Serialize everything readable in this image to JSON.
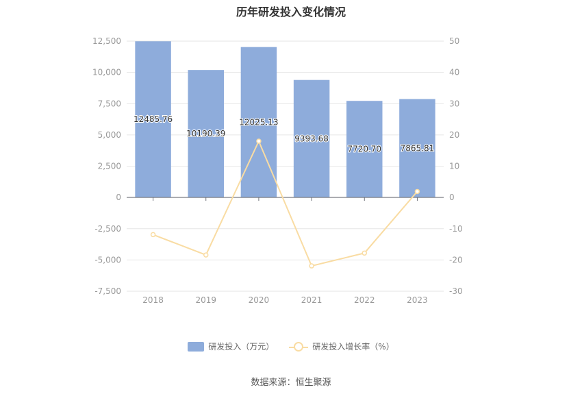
{
  "title": "历年研发投入变化情况",
  "source": "数据来源：恒生聚源",
  "colors": {
    "bar": "#8eacdb",
    "line": "#f9dca3",
    "grid": "#e6e6e6"
  },
  "chart_data": {
    "type": "bar",
    "categories": [
      "2018",
      "2019",
      "2020",
      "2021",
      "2022",
      "2023"
    ],
    "series": [
      {
        "name": "研发投入（万元）",
        "type": "bar",
        "axis": "left",
        "values": [
          12485.76,
          10190.39,
          12025.13,
          9393.68,
          7720.7,
          7865.81
        ],
        "labels": [
          "12485.76",
          "10190.39",
          "12025.13",
          "9393.68",
          "7720.70",
          "7865.81"
        ]
      },
      {
        "name": "研发投入增长率（%）",
        "type": "line",
        "axis": "right",
        "values": [
          -11.9,
          -18.4,
          18.0,
          -21.9,
          -17.8,
          1.9
        ]
      }
    ],
    "y_left": {
      "min": -7500,
      "max": 12500,
      "ticks": [
        "-7,500",
        "-5,000",
        "-2,500",
        "0",
        "2,500",
        "5,000",
        "7,500",
        "10,000",
        "12,500"
      ]
    },
    "y_right": {
      "min": -30,
      "max": 50,
      "ticks": [
        "-30",
        "-20",
        "-10",
        "0",
        "10",
        "20",
        "30",
        "40",
        "50"
      ]
    },
    "grid": true,
    "legend_position": "bottom"
  }
}
